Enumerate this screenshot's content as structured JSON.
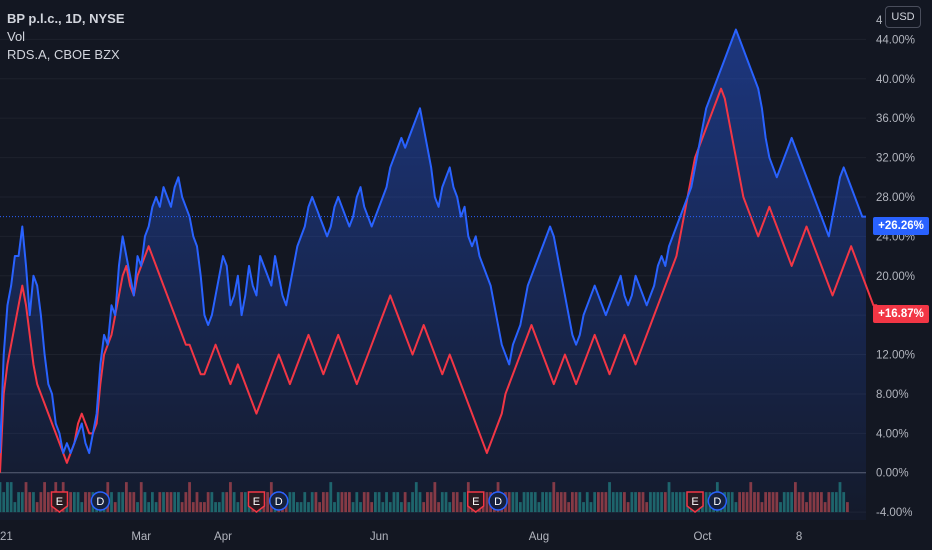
{
  "legend": {
    "main": "BP p.l.c., 1D, NYSE",
    "vol": "Vol",
    "compare": "RDS.A, CBOE BZX"
  },
  "currency": "USD",
  "colors": {
    "background": "#131722",
    "bp_line": "#2962ff",
    "rds_line": "#f23645",
    "vol_up": "#26a69a",
    "vol_down": "#ef5350",
    "axis_text": "#b2b5be"
  },
  "chart_data": {
    "type": "line",
    "y_unit": "percent",
    "ylim": [
      -4.8,
      48
    ],
    "y_ticks": [
      "44.00%",
      "40.00%",
      "36.00%",
      "32.00%",
      "28.00%",
      "24.00%",
      "20.00%",
      "16.00%",
      "12.00%",
      "8.00%",
      "4.00%",
      "0.00%",
      "-4.00%"
    ],
    "y_tick_values": [
      44,
      40,
      36,
      32,
      28,
      24,
      20,
      16,
      12,
      8,
      4,
      0,
      -4
    ],
    "y_top_partial_label": "4",
    "x_ticks": [
      {
        "label": "21",
        "index": 0
      },
      {
        "label": "Mar",
        "index": 38
      },
      {
        "label": "Apr",
        "index": 60
      },
      {
        "label": "Jun",
        "index": 102
      },
      {
        "label": "Aug",
        "index": 145
      },
      {
        "label": "Oct",
        "index": 189
      },
      {
        "label": "8",
        "index": 215
      }
    ],
    "series": [
      {
        "name": "BP p.l.c.",
        "last_label": "+26.26%",
        "values": [
          2,
          12,
          17,
          19,
          22,
          22,
          25,
          21,
          16,
          20,
          19,
          16,
          12,
          9,
          8,
          5,
          4,
          2,
          3,
          2,
          3,
          4,
          5,
          3,
          2,
          4,
          6,
          11,
          14,
          13,
          17,
          16,
          21,
          24,
          22,
          20,
          18,
          22,
          21,
          24,
          25,
          27,
          28,
          27,
          29,
          28,
          27,
          29,
          30,
          28,
          27,
          26,
          24,
          23,
          20,
          16,
          15,
          16,
          18,
          20,
          22,
          21,
          17,
          18,
          20,
          16,
          18,
          21,
          19,
          18,
          22,
          21,
          20,
          19,
          22,
          20,
          18,
          17,
          19,
          21,
          23,
          24,
          25,
          27,
          28,
          27,
          26,
          25,
          24,
          25,
          27,
          28,
          27,
          26,
          25,
          26,
          28,
          29,
          27,
          26,
          25,
          26,
          27,
          28,
          29,
          31,
          32,
          33,
          34,
          33,
          34,
          35,
          36,
          37,
          35,
          33,
          31,
          28,
          27,
          29,
          30,
          31,
          29,
          28,
          26,
          27,
          24,
          23,
          24,
          22,
          21,
          20,
          19,
          17,
          15,
          13,
          12,
          11,
          13,
          14,
          15,
          17,
          19,
          20,
          21,
          22,
          23,
          24,
          25,
          24,
          22,
          20,
          18,
          16,
          14,
          13,
          14,
          16,
          17,
          18,
          19,
          18,
          17,
          16,
          17,
          18,
          19,
          20,
          18,
          17,
          18,
          20,
          19,
          18,
          17,
          18,
          19,
          21,
          22,
          21,
          23,
          24,
          25,
          26,
          27,
          28,
          29,
          31,
          33,
          35,
          37,
          38,
          39,
          40,
          41,
          42,
          43,
          44,
          45,
          44,
          43,
          42,
          41,
          40,
          39,
          37,
          34,
          32,
          31,
          30,
          31,
          32,
          33,
          34,
          33,
          32,
          31,
          30,
          29,
          28,
          27,
          26,
          25,
          24,
          26,
          28,
          30,
          31,
          30,
          29,
          28,
          27,
          26,
          26
        ]
      },
      {
        "name": "RDS.A",
        "last_label": "+16.87%",
        "values": [
          0,
          8,
          11,
          13,
          15,
          17,
          19,
          17,
          14,
          11,
          9,
          8,
          7,
          6,
          5,
          4,
          3,
          2,
          1,
          2,
          3,
          5,
          6,
          5,
          4,
          4,
          5,
          9,
          12,
          13,
          14,
          16,
          18,
          20,
          21,
          19,
          18,
          20,
          21,
          22,
          23,
          22,
          21,
          20,
          19,
          18,
          17,
          16,
          15,
          14,
          13,
          13,
          12,
          11,
          10,
          10,
          11,
          12,
          13,
          12,
          11,
          10,
          9,
          10,
          11,
          10,
          9,
          8,
          7,
          6,
          7,
          8,
          9,
          10,
          11,
          12,
          11,
          10,
          9,
          10,
          11,
          12,
          13,
          14,
          13,
          12,
          11,
          10,
          11,
          12,
          13,
          14,
          13,
          12,
          11,
          10,
          9,
          10,
          11,
          12,
          13,
          14,
          15,
          16,
          17,
          18,
          17,
          16,
          15,
          14,
          13,
          12,
          13,
          14,
          15,
          14,
          13,
          12,
          11,
          10,
          11,
          12,
          11,
          10,
          9,
          8,
          7,
          6,
          5,
          4,
          3,
          2,
          3,
          4,
          5,
          6,
          8,
          9,
          10,
          11,
          12,
          13,
          14,
          15,
          14,
          13,
          12,
          11,
          10,
          9,
          10,
          11,
          12,
          11,
          10,
          9,
          10,
          11,
          12,
          13,
          14,
          13,
          12,
          11,
          10,
          11,
          12,
          13,
          14,
          13,
          12,
          11,
          12,
          13,
          14,
          15,
          16,
          17,
          18,
          19,
          20,
          21,
          22,
          24,
          26,
          28,
          30,
          32,
          33,
          34,
          35,
          36,
          37,
          38,
          39,
          38,
          36,
          34,
          32,
          30,
          28,
          27,
          26,
          25,
          24,
          25,
          26,
          27,
          26,
          25,
          24,
          23,
          22,
          21,
          22,
          23,
          24,
          25,
          24,
          23,
          22,
          21,
          20,
          19,
          18,
          19,
          20,
          21,
          22,
          23,
          22,
          21,
          20,
          19,
          18,
          17,
          17
        ]
      }
    ],
    "volume": [
      3,
      2,
      3,
      3,
      1,
      2,
      2,
      3,
      2,
      2,
      1,
      2,
      3,
      2,
      2,
      3,
      2,
      3,
      1,
      2,
      2,
      2,
      1,
      2,
      2,
      2,
      2,
      1,
      1,
      3,
      2,
      1,
      2,
      2,
      3,
      2,
      2,
      1,
      3,
      2,
      1,
      2,
      1,
      2,
      2,
      2,
      2,
      2,
      2,
      1,
      2,
      3,
      1,
      2,
      1,
      1,
      2,
      2,
      1,
      1,
      2,
      2,
      3,
      2,
      1,
      2,
      2,
      1,
      2,
      2,
      2,
      1,
      2,
      3,
      2,
      2,
      2,
      1,
      2,
      2,
      1,
      1,
      2,
      1,
      2,
      2,
      1,
      2,
      2,
      3,
      1,
      2,
      2,
      2,
      2,
      1,
      2,
      1,
      2,
      2,
      1,
      2,
      2,
      1,
      2,
      1,
      2,
      2,
      1,
      2,
      1,
      2,
      3,
      2,
      1,
      2,
      2,
      3,
      1,
      2,
      2,
      1,
      2,
      2,
      1,
      2,
      3,
      2,
      2,
      1,
      2,
      2,
      2,
      2,
      3,
      1,
      2,
      2,
      2,
      2,
      1,
      2,
      2,
      2,
      2,
      1,
      2,
      2,
      2,
      3,
      2,
      2,
      2,
      1,
      2,
      2,
      2,
      1,
      2,
      1,
      2,
      2,
      2,
      2,
      3,
      2,
      2,
      2,
      2,
      1,
      2,
      2,
      2,
      2,
      1,
      2,
      2,
      2,
      2,
      2,
      3,
      2,
      2,
      2,
      2,
      2,
      1,
      2,
      2,
      1,
      2,
      2,
      2,
      3,
      1,
      2,
      2,
      2,
      1,
      2,
      2,
      2,
      3,
      2,
      2,
      1,
      2,
      2,
      2,
      2,
      1,
      2,
      2,
      2,
      3,
      2,
      2,
      1,
      2,
      2,
      2,
      2,
      1,
      2,
      2,
      2,
      3,
      2,
      1
    ],
    "events": [
      {
        "type": "E",
        "index": 16
      },
      {
        "type": "D",
        "index": 27
      },
      {
        "type": "E",
        "index": 69
      },
      {
        "type": "D",
        "index": 75
      },
      {
        "type": "E",
        "index": 128
      },
      {
        "type": "D",
        "index": 134
      },
      {
        "type": "E",
        "index": 187
      },
      {
        "type": "D",
        "index": 193
      }
    ]
  }
}
